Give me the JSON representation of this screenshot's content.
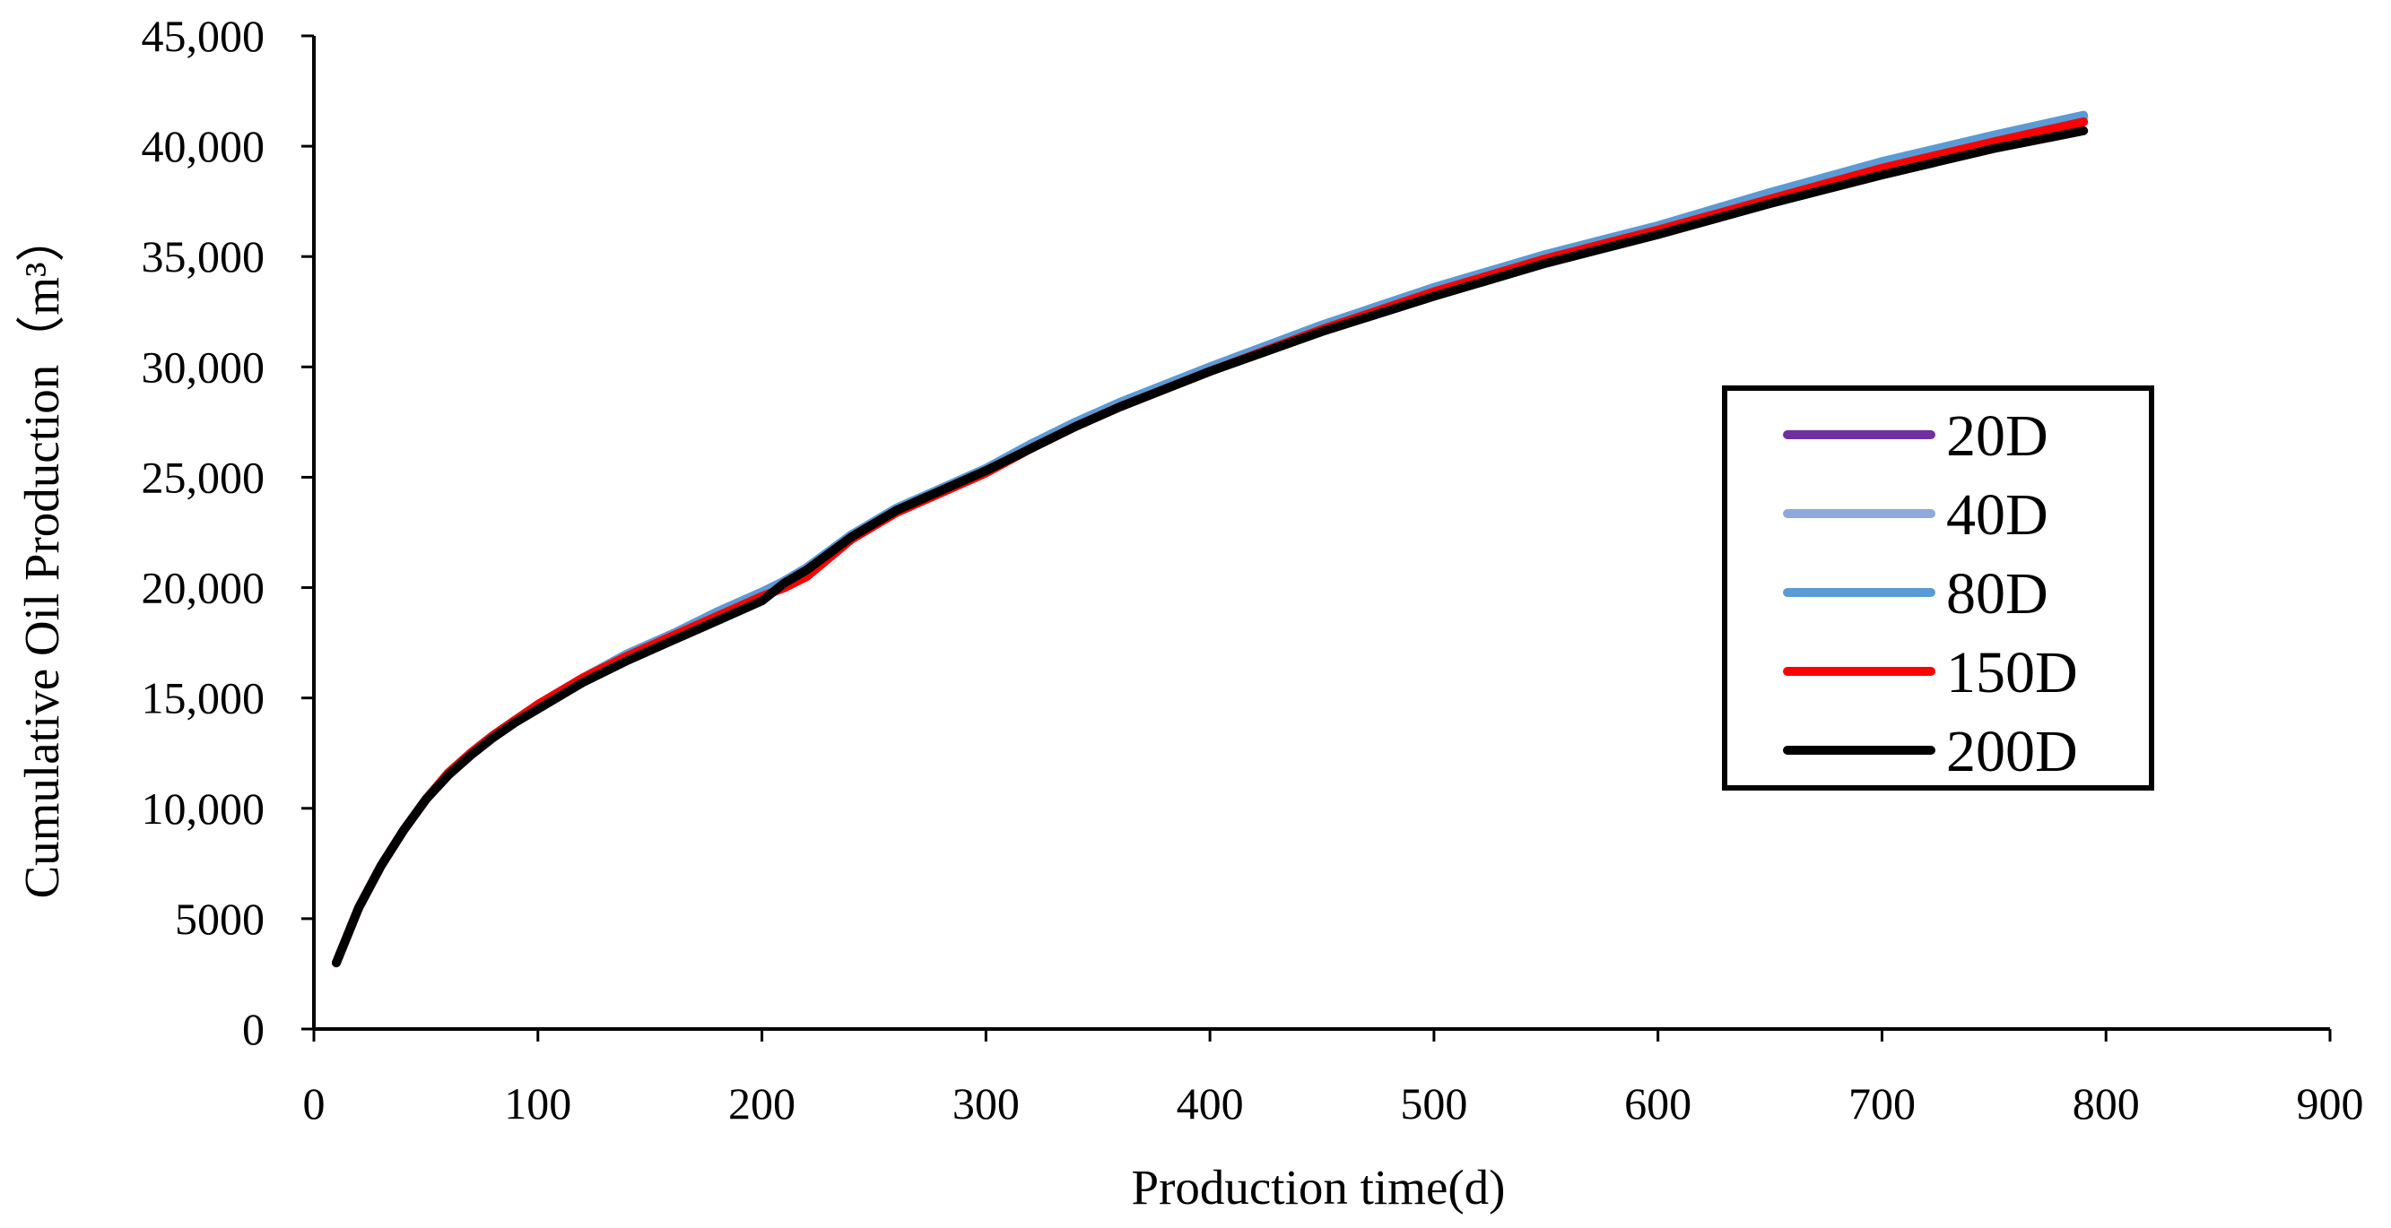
{
  "chart_data": {
    "type": "line",
    "title": "",
    "xlabel": "Production time(d)",
    "ylabel": "Cumulative Oil Production（m³）",
    "xlim": [
      0,
      900
    ],
    "ylim": [
      0,
      45000
    ],
    "x_ticks": [
      0,
      100,
      200,
      300,
      400,
      500,
      600,
      700,
      800,
      900
    ],
    "x_tick_labels": [
      "0",
      "100",
      "200",
      "300",
      "400",
      "500",
      "600",
      "700",
      "800",
      "900"
    ],
    "y_ticks": [
      0,
      5000,
      10000,
      15000,
      20000,
      25000,
      30000,
      35000,
      40000,
      45000
    ],
    "y_tick_labels": [
      "0",
      "5000",
      "10,000",
      "15,000",
      "20,000",
      "25,000",
      "30,000",
      "35,000",
      "40,000",
      "45,000"
    ],
    "grid": false,
    "legend_position": "right",
    "x": [
      10,
      20,
      30,
      40,
      50,
      60,
      70,
      80,
      90,
      100,
      120,
      140,
      160,
      180,
      200,
      210,
      220,
      240,
      260,
      280,
      300,
      320,
      340,
      360,
      380,
      400,
      450,
      500,
      550,
      600,
      650,
      700,
      750,
      790
    ],
    "series": [
      {
        "name": "20D",
        "color": "#7030A0",
        "values": [
          3000,
          5500,
          7400,
          9000,
          10400,
          11600,
          12500,
          13300,
          14000,
          14700,
          15900,
          17000,
          17900,
          18800,
          19700,
          20300,
          20900,
          22400,
          23500,
          24500,
          25300,
          26400,
          27400,
          28300,
          29100,
          29900,
          31800,
          33500,
          35000,
          36300,
          37800,
          39200,
          40400,
          41300
        ]
      },
      {
        "name": "40D",
        "color": "#8EA9DB",
        "values": [
          3000,
          5500,
          7400,
          9000,
          10400,
          11600,
          12500,
          13300,
          14000,
          14700,
          15900,
          17000,
          17900,
          18800,
          19700,
          20300,
          20900,
          22400,
          23500,
          24500,
          25300,
          26400,
          27400,
          28300,
          29100,
          29900,
          31800,
          33500,
          35000,
          36300,
          37800,
          39200,
          40400,
          41300
        ]
      },
      {
        "name": "80D",
        "color": "#5B9BD5",
        "values": [
          3000,
          5500,
          7400,
          9000,
          10400,
          11600,
          12500,
          13300,
          14000,
          14700,
          15900,
          17000,
          17900,
          18900,
          19800,
          20300,
          20900,
          22400,
          23600,
          24500,
          25400,
          26500,
          27500,
          28400,
          29200,
          30000,
          31900,
          33600,
          35100,
          36400,
          37900,
          39300,
          40500,
          41400
        ]
      },
      {
        "name": "150D",
        "color": "#FF0000",
        "values": [
          3000,
          5500,
          7400,
          9000,
          10400,
          11600,
          12500,
          13300,
          14000,
          14700,
          15900,
          16900,
          17800,
          18700,
          19600,
          20000,
          20500,
          22200,
          23400,
          24300,
          25200,
          26300,
          27300,
          28200,
          29000,
          29800,
          31700,
          33400,
          34900,
          36200,
          37600,
          39000,
          40200,
          41100
        ]
      },
      {
        "name": "200D",
        "color": "#000000",
        "values": [
          3000,
          5500,
          7400,
          9000,
          10400,
          11500,
          12400,
          13200,
          13900,
          14500,
          15700,
          16700,
          17600,
          18500,
          19400,
          20200,
          20800,
          22300,
          23500,
          24400,
          25300,
          26300,
          27300,
          28200,
          29000,
          29800,
          31600,
          33200,
          34700,
          36000,
          37400,
          38700,
          39900,
          40700
        ]
      }
    ]
  }
}
